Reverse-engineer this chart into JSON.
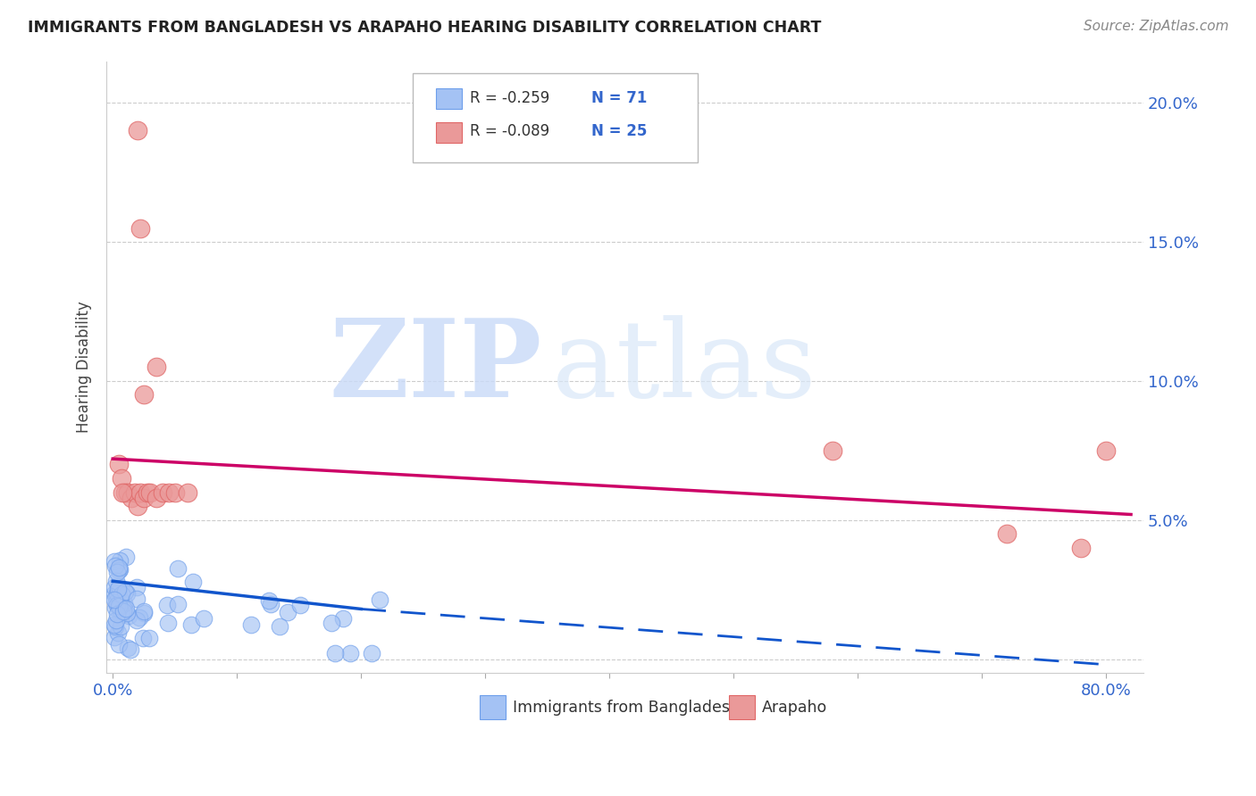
{
  "title": "IMMIGRANTS FROM BANGLADESH VS ARAPAHO HEARING DISABILITY CORRELATION CHART",
  "source": "Source: ZipAtlas.com",
  "ylabel": "Hearing Disability",
  "xlim": [
    -0.005,
    0.83
  ],
  "ylim": [
    -0.005,
    0.215
  ],
  "yticks": [
    0.0,
    0.05,
    0.1,
    0.15,
    0.2
  ],
  "ytick_labels": [
    "",
    "5.0%",
    "10.0%",
    "15.0%",
    "20.0%"
  ],
  "xticks": [
    0.0,
    0.1,
    0.2,
    0.3,
    0.4,
    0.5,
    0.6,
    0.7,
    0.8
  ],
  "xtick_labels": [
    "0.0%",
    "",
    "",
    "",
    "",
    "",
    "",
    "",
    "80.0%"
  ],
  "blue_R": -0.259,
  "blue_N": 71,
  "pink_R": -0.089,
  "pink_N": 25,
  "blue_color": "#a4c2f4",
  "pink_color": "#ea9999",
  "blue_edge_color": "#6d9eeb",
  "pink_edge_color": "#e06666",
  "blue_line_color": "#1155cc",
  "pink_line_color": "#cc0066",
  "watermark_zip": "ZIP",
  "watermark_atlas": "atlas",
  "legend_blue_label": "Immigrants from Bangladesh",
  "legend_pink_label": "Arapaho",
  "blue_trend_x0": 0.0,
  "blue_trend_y0": 0.028,
  "blue_trend_x_solid_end": 0.2,
  "blue_trend_y_solid_end": 0.018,
  "blue_trend_x_dashed_end": 0.8,
  "blue_trend_y_dashed_end": -0.002,
  "pink_trend_x0": 0.0,
  "pink_trend_y0": 0.072,
  "pink_trend_x1": 0.82,
  "pink_trend_y1": 0.052,
  "pink_scatter_x": [
    0.005,
    0.007,
    0.01,
    0.012,
    0.015,
    0.018,
    0.02,
    0.022,
    0.025,
    0.028,
    0.008,
    0.03,
    0.035,
    0.04,
    0.045,
    0.05,
    0.02,
    0.022,
    0.035,
    0.58,
    0.72,
    0.78,
    0.8,
    0.025,
    0.06
  ],
  "pink_scatter_y": [
    0.07,
    0.065,
    0.06,
    0.06,
    0.058,
    0.06,
    0.055,
    0.06,
    0.058,
    0.06,
    0.06,
    0.06,
    0.058,
    0.06,
    0.06,
    0.06,
    0.19,
    0.155,
    0.105,
    0.075,
    0.045,
    0.04,
    0.075,
    0.095,
    0.06
  ]
}
